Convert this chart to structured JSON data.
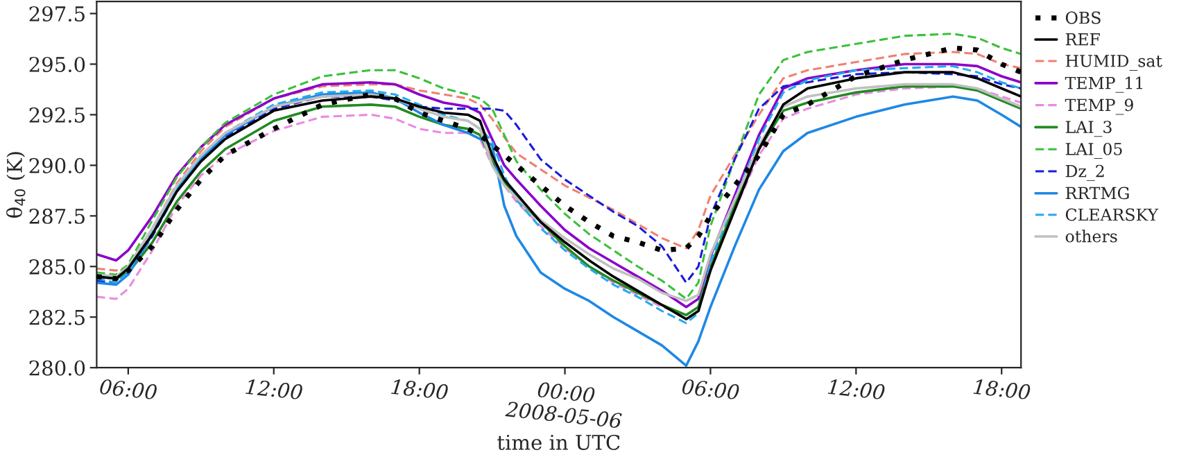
{
  "chart_data": {
    "type": "line",
    "xlabel": "time in UTC",
    "ylabel": "θ$_{40}$ (K)",
    "x": [
      "2008-05-05T04:42",
      "2008-05-05T05:30",
      "2008-05-05T06:00",
      "2008-05-05T07:00",
      "2008-05-05T08:00",
      "2008-05-05T09:00",
      "2008-05-05T10:00",
      "2008-05-05T12:00",
      "2008-05-05T14:00",
      "2008-05-05T16:00",
      "2008-05-05T17:00",
      "2008-05-05T18:00",
      "2008-05-05T19:00",
      "2008-05-05T20:00",
      "2008-05-05T20:30",
      "2008-05-05T21:00",
      "2008-05-05T21:30",
      "2008-05-05T22:00",
      "2008-05-05T23:00",
      "2008-05-06T00:00",
      "2008-05-06T01:00",
      "2008-05-06T02:00",
      "2008-05-06T03:00",
      "2008-05-06T04:00",
      "2008-05-06T05:00",
      "2008-05-06T05:30",
      "2008-05-06T06:00",
      "2008-05-06T07:00",
      "2008-05-06T08:00",
      "2008-05-06T09:00",
      "2008-05-06T10:00",
      "2008-05-06T12:00",
      "2008-05-06T14:00",
      "2008-05-06T16:00",
      "2008-05-06T17:00",
      "2008-05-06T18:00",
      "2008-05-06T18:48"
    ],
    "xlim": [
      "2008-05-05T04:42",
      "2008-05-06T18:48"
    ],
    "ylim": [
      280,
      298.1
    ],
    "xticks": [
      {
        "value": "2008-05-05T06:00",
        "label": "06:00"
      },
      {
        "value": "2008-05-05T12:00",
        "label": "12:00"
      },
      {
        "value": "2008-05-05T18:00",
        "label": "18:00"
      },
      {
        "value": "2008-05-06T00:00",
        "label": "00:00\n2008-05-06"
      },
      {
        "value": "2008-05-06T06:00",
        "label": "06:00"
      },
      {
        "value": "2008-05-06T12:00",
        "label": "12:00"
      },
      {
        "value": "2008-05-06T18:00",
        "label": "18:00"
      }
    ],
    "yticks": [
      {
        "value": 280,
        "label": "280.0"
      },
      {
        "value": 282.5,
        "label": "282.5"
      },
      {
        "value": 285,
        "label": "285.0"
      },
      {
        "value": 287.5,
        "label": "287.5"
      },
      {
        "value": 290,
        "label": "290.0"
      },
      {
        "value": 292.5,
        "label": "292.5"
      },
      {
        "value": 295,
        "label": "295.0"
      },
      {
        "value": 297.5,
        "label": "297.5"
      }
    ],
    "grid": false,
    "legend": "right",
    "series": [
      {
        "name": "OBS",
        "color": "#000000",
        "line_style": "dotted",
        "values": [
          284.5,
          284.4,
          284.8,
          286.0,
          287.8,
          289.3,
          290.5,
          291.8,
          293.0,
          293.5,
          293.3,
          292.6,
          292.2,
          291.8,
          291.5,
          291.0,
          290.5,
          290.0,
          289.0,
          288.0,
          287.2,
          286.5,
          286.2,
          285.8,
          285.9,
          286.5,
          287.5,
          289.0,
          290.5,
          292.5,
          293.0,
          294.4,
          295.2,
          295.8,
          295.7,
          295.0,
          294.6
        ]
      },
      {
        "name": "REF",
        "color": "#000000",
        "line_style": "solid",
        "values": [
          284.5,
          284.4,
          284.9,
          286.6,
          288.7,
          290.2,
          291.3,
          292.7,
          293.2,
          293.4,
          293.3,
          292.9,
          292.6,
          292.5,
          292.2,
          290.5,
          289.3,
          288.6,
          287.2,
          286.2,
          285.3,
          284.5,
          283.8,
          283.1,
          282.4,
          282.8,
          284.8,
          287.8,
          290.8,
          293.0,
          293.8,
          294.3,
          294.6,
          294.6,
          294.3,
          293.8,
          293.4
        ]
      },
      {
        "name": "HUMID_sat",
        "color": "#f08070",
        "line_style": "dashed",
        "values": [
          284.9,
          284.8,
          285.0,
          286.9,
          289.1,
          290.7,
          291.9,
          293.3,
          293.9,
          294.0,
          294.0,
          293.7,
          293.5,
          293.3,
          293.0,
          292.3,
          291.4,
          290.6,
          289.8,
          289.0,
          288.4,
          287.8,
          287.1,
          286.4,
          285.9,
          286.8,
          288.5,
          290.5,
          292.5,
          294.3,
          294.7,
          295.1,
          295.5,
          295.6,
          295.5,
          295.0,
          294.8
        ]
      },
      {
        "name": "TEMP_11",
        "color": "#8b00c9",
        "line_style": "solid",
        "values": [
          285.6,
          285.3,
          285.8,
          287.5,
          289.5,
          290.9,
          292.0,
          293.3,
          294.0,
          294.1,
          294.0,
          293.5,
          293.1,
          292.9,
          292.6,
          291.3,
          290.0,
          289.3,
          288.0,
          286.8,
          285.9,
          285.2,
          284.5,
          283.8,
          283.0,
          283.4,
          285.5,
          288.5,
          291.5,
          293.8,
          294.3,
          294.7,
          295.0,
          295.0,
          294.9,
          294.4,
          294.1
        ]
      },
      {
        "name": "TEMP_9",
        "color": "#e98ae0",
        "line_style": "dashed",
        "values": [
          283.5,
          283.4,
          283.9,
          285.8,
          288.0,
          289.5,
          290.5,
          291.7,
          292.4,
          292.5,
          292.3,
          291.8,
          291.6,
          291.6,
          291.3,
          290.0,
          289.0,
          288.2,
          287.0,
          285.9,
          285.0,
          284.2,
          283.6,
          283.0,
          282.6,
          283.0,
          285.0,
          287.8,
          290.5,
          292.3,
          292.8,
          293.5,
          293.8,
          293.9,
          293.8,
          293.4,
          293.1
        ]
      },
      {
        "name": "LAI_3",
        "color": "#228b22",
        "line_style": "solid",
        "values": [
          284.5,
          284.4,
          284.7,
          286.2,
          288.2,
          289.7,
          290.8,
          292.2,
          292.9,
          293.0,
          292.9,
          292.4,
          292.0,
          291.8,
          291.5,
          290.2,
          289.2,
          288.4,
          287.2,
          286.0,
          285.0,
          284.3,
          283.7,
          283.1,
          282.6,
          283.0,
          285.0,
          288.0,
          290.8,
          292.7,
          293.1,
          293.6,
          293.9,
          293.9,
          293.7,
          293.2,
          292.8
        ]
      },
      {
        "name": "LAI_05",
        "color": "#3cc03c",
        "line_style": "dashed",
        "values": [
          284.7,
          284.6,
          285.1,
          287.3,
          289.4,
          290.9,
          292.1,
          293.5,
          294.4,
          294.7,
          294.7,
          294.3,
          293.8,
          293.5,
          293.3,
          292.8,
          291.5,
          290.2,
          288.8,
          287.6,
          286.6,
          285.8,
          285.0,
          284.3,
          283.4,
          284.2,
          287.0,
          290.3,
          293.5,
          295.2,
          295.6,
          296.0,
          296.4,
          296.5,
          296.3,
          295.8,
          295.5
        ]
      },
      {
        "name": "Dz_2",
        "color": "#1a1adc",
        "line_style": "dashed",
        "values": [
          284.3,
          284.2,
          284.7,
          286.5,
          288.7,
          290.2,
          291.4,
          292.8,
          293.4,
          293.4,
          293.2,
          292.9,
          292.8,
          292.8,
          292.8,
          292.8,
          292.7,
          292.0,
          290.3,
          289.3,
          288.5,
          287.7,
          287.0,
          286.0,
          284.2,
          285.0,
          287.5,
          290.3,
          292.8,
          293.9,
          294.1,
          294.5,
          294.6,
          294.5,
          294.4,
          294.0,
          293.8
        ]
      },
      {
        "name": "RRTMG",
        "color": "#1e88e5",
        "line_style": "solid",
        "values": [
          284.2,
          284.1,
          284.6,
          286.6,
          288.8,
          290.3,
          291.5,
          292.9,
          293.5,
          293.6,
          293.3,
          292.6,
          292.0,
          291.6,
          291.3,
          291.0,
          288.0,
          286.5,
          284.7,
          283.9,
          283.3,
          282.5,
          281.8,
          281.1,
          280.1,
          281.3,
          283.0,
          286.0,
          288.8,
          290.7,
          291.6,
          292.4,
          293.0,
          293.4,
          293.2,
          292.5,
          291.9
        ]
      },
      {
        "name": "CLEARSKY",
        "color": "#22aaee",
        "line_style": "dashed",
        "values": [
          284.4,
          284.2,
          284.7,
          286.7,
          288.9,
          290.4,
          291.6,
          293.0,
          293.6,
          293.7,
          293.5,
          293.0,
          292.5,
          292.2,
          291.8,
          291.2,
          289.5,
          288.3,
          286.9,
          285.8,
          284.9,
          284.1,
          283.5,
          282.8,
          282.2,
          282.7,
          285.2,
          288.3,
          291.3,
          293.6,
          294.2,
          294.7,
          294.8,
          294.9,
          294.6,
          294.1,
          293.8
        ]
      },
      {
        "name": "others",
        "color": "#c0c0c0",
        "line_style": "solid",
        "values": [
          284.6,
          284.5,
          285.0,
          286.9,
          289.0,
          290.5,
          291.6,
          292.9,
          293.4,
          293.5,
          293.3,
          292.8,
          292.4,
          292.2,
          291.8,
          290.0,
          289.0,
          288.4,
          287.3,
          286.4,
          285.6,
          284.9,
          284.4,
          283.7,
          283.3,
          283.6,
          285.6,
          288.3,
          291.0,
          292.9,
          293.4,
          293.8,
          294.0,
          294.0,
          293.8,
          293.3,
          292.9
        ]
      }
    ]
  }
}
